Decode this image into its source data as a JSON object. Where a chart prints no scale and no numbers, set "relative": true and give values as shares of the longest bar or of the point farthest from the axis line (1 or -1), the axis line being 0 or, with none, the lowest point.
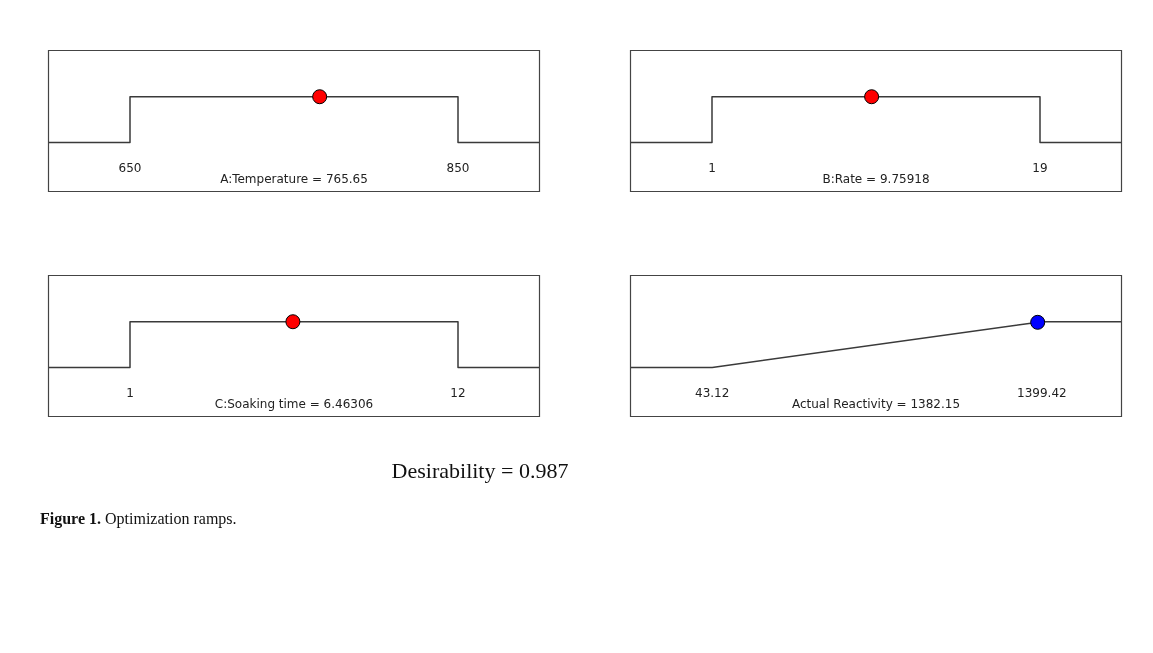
{
  "chart_data": [
    {
      "type": "line",
      "relative": true,
      "xlabel": "A:Temperature = 765.65",
      "xlim": [
        600,
        900
      ],
      "xticks": [
        650,
        850
      ],
      "series": [
        {
          "type": "step",
          "color": "#3a3a3a",
          "x": [
            600,
            650,
            850,
            900
          ],
          "values": [
            0,
            1,
            0,
            0
          ]
        },
        {
          "type": "scatter",
          "color": "#ff0000",
          "x": [
            765.65
          ],
          "values": [
            1
          ]
        }
      ]
    },
    {
      "type": "line",
      "relative": true,
      "xlabel": "B:Rate = 9.75918",
      "xlim": [
        -3.5,
        23.5
      ],
      "xticks": [
        1,
        19
      ],
      "series": [
        {
          "type": "step",
          "color": "#3a3a3a",
          "x": [
            -3.5,
            1,
            19,
            23.5
          ],
          "values": [
            0,
            1,
            0,
            0
          ]
        },
        {
          "type": "scatter",
          "color": "#ff0000",
          "x": [
            9.75918
          ],
          "values": [
            1
          ]
        }
      ]
    },
    {
      "type": "line",
      "relative": true,
      "xlabel": "C:Soaking time = 6.46306",
      "xlim": [
        -1.75,
        14.75
      ],
      "xticks": [
        1,
        12
      ],
      "series": [
        {
          "type": "step",
          "color": "#3a3a3a",
          "x": [
            -1.75,
            1,
            12,
            14.75
          ],
          "values": [
            0,
            1,
            0,
            0
          ]
        },
        {
          "type": "scatter",
          "color": "#ff0000",
          "x": [
            6.46306
          ],
          "values": [
            1
          ]
        }
      ]
    },
    {
      "type": "line",
      "relative": true,
      "xlabel": "Actual Reactivity = 1382.15",
      "xlim": [
        -295,
        1729
      ],
      "xticks": [
        43.12,
        1399.42
      ],
      "series": [
        {
          "type": "line",
          "color": "#3a3a3a",
          "x": [
            -295,
            43.12,
            1399.42,
            1729
          ],
          "values": [
            0,
            0,
            1,
            1
          ]
        },
        {
          "type": "scatter",
          "color": "#0000ff",
          "x": [
            1382.15
          ],
          "values": [
            0.987
          ]
        }
      ]
    },
    {
      "type": "other",
      "annotations": [
        "Desirability = 0.987",
        "Figure 1.",
        "Optimization ramps."
      ]
    }
  ]
}
